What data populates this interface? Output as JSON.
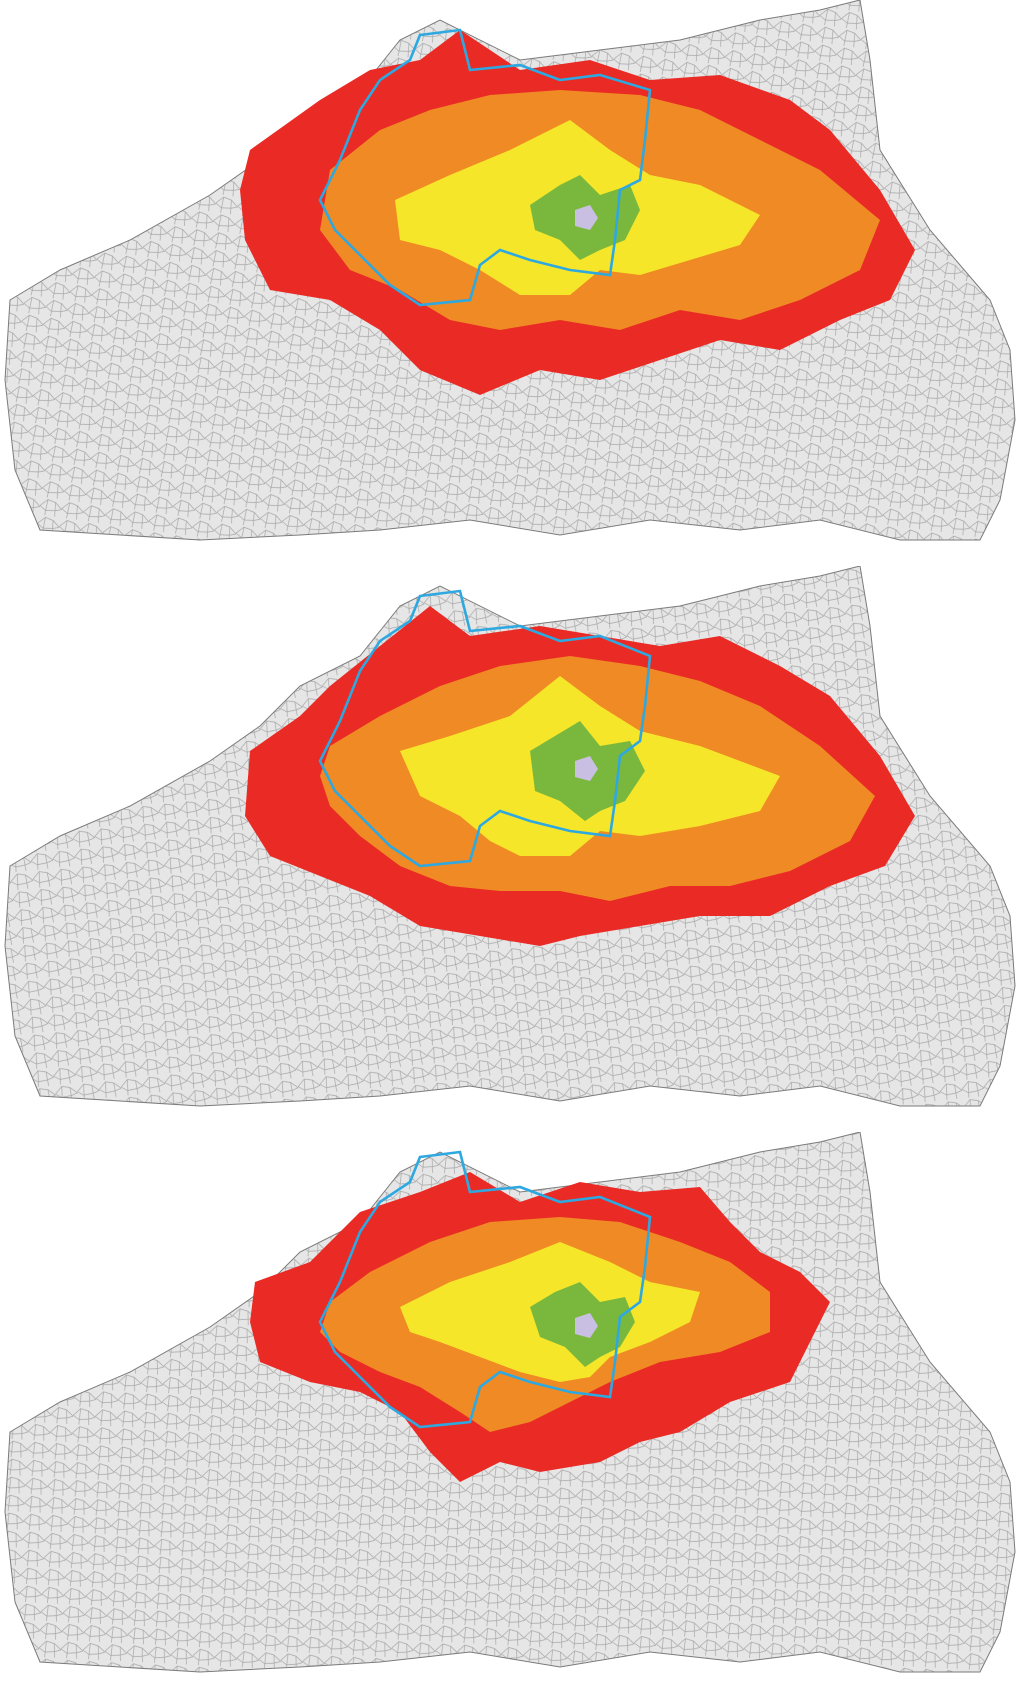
{
  "figure": {
    "panels": [
      {
        "id": "panel-1",
        "zones_order": [
          "red",
          "orange",
          "yellow",
          "green",
          "center"
        ]
      },
      {
        "id": "panel-2",
        "zones_order": [
          "red",
          "orange",
          "yellow",
          "green",
          "center"
        ]
      },
      {
        "id": "panel-3",
        "zones_order": [
          "red",
          "orange",
          "yellow",
          "green",
          "center"
        ]
      }
    ]
  },
  "colors": {
    "background_region": "#e6e6e6",
    "region_outline": "#7a7a7a",
    "zone_red": "#ea2a24",
    "zone_orange": "#f08a24",
    "zone_yellow": "#f6e62a",
    "zone_green": "#79b83c",
    "zone_center": "#c9bfe2",
    "boundary_blue": "#2ea8e0"
  }
}
